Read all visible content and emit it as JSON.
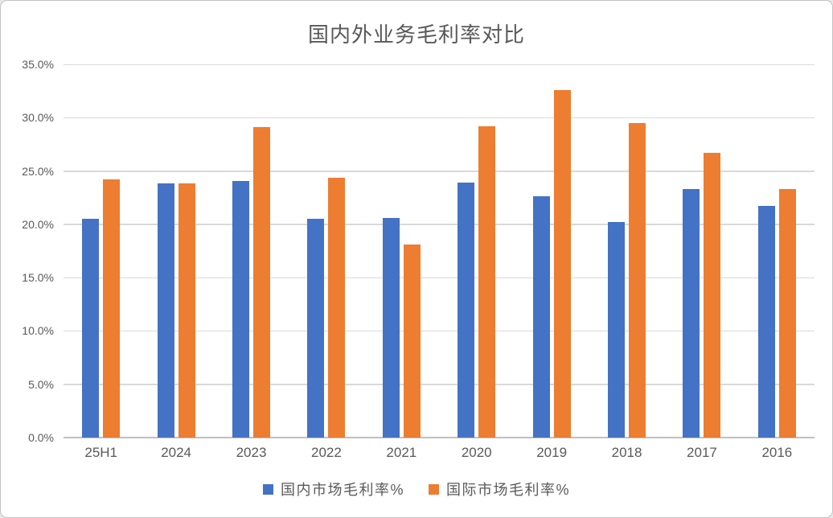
{
  "chart_data": {
    "type": "bar",
    "title": "国内外业务毛利率对比",
    "categories": [
      "25H1",
      "2024",
      "2023",
      "2022",
      "2021",
      "2020",
      "2019",
      "2018",
      "2017",
      "2016"
    ],
    "series": [
      {
        "name": "国内市场毛利率%",
        "color": "#4472C4",
        "values": [
          20.5,
          23.8,
          24.1,
          20.5,
          20.6,
          23.9,
          22.6,
          20.2,
          23.3,
          21.7
        ]
      },
      {
        "name": "国际市场毛利率%",
        "color": "#ED7D31",
        "values": [
          24.2,
          23.8,
          29.1,
          24.4,
          18.1,
          29.2,
          32.6,
          29.5,
          26.7,
          23.3
        ]
      }
    ],
    "xlabel": "",
    "ylabel": "",
    "ylim": [
      0,
      35
    ],
    "ytick_step": 5,
    "ytick_labels": [
      "0.0%",
      "5.0%",
      "10.0%",
      "15.0%",
      "20.0%",
      "25.0%",
      "30.0%",
      "35.0%"
    ],
    "grid": true,
    "legend_position": "bottom"
  },
  "colors": {
    "series_domestic": "#4472C4",
    "series_international": "#ED7D31",
    "gridline": "#D9D9D9",
    "axis_baseline": "#BFBFBF",
    "text": "#595959",
    "background": "#FFFFFF",
    "frame_border": "#C3C3C3"
  }
}
